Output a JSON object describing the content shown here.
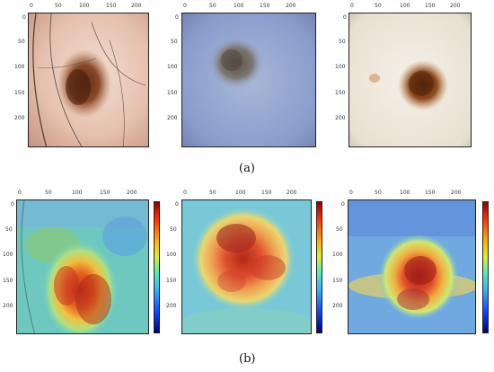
{
  "ticks_x": [
    "0",
    "50",
    "100",
    "150",
    "200"
  ],
  "ticks_y": [
    "0",
    "50",
    "100",
    "150",
    "200"
  ],
  "captions": {
    "a": "(a)",
    "b": "(b)"
  },
  "panels_a": [
    {
      "name": "dermoscopy-image-1",
      "description_icon": "skin-lesion-hair-image"
    },
    {
      "name": "dermoscopy-image-2",
      "description_icon": "skin-lesion-blue-image"
    },
    {
      "name": "dermoscopy-image-3",
      "description_icon": "skin-lesion-white-image"
    }
  ],
  "panels_b": [
    {
      "name": "heatmap-overlay-1"
    },
    {
      "name": "heatmap-overlay-2"
    },
    {
      "name": "heatmap-overlay-3"
    }
  ],
  "colors": {
    "colorbar_top": "#8b0000",
    "colorbar_bottom": "#00007a"
  }
}
